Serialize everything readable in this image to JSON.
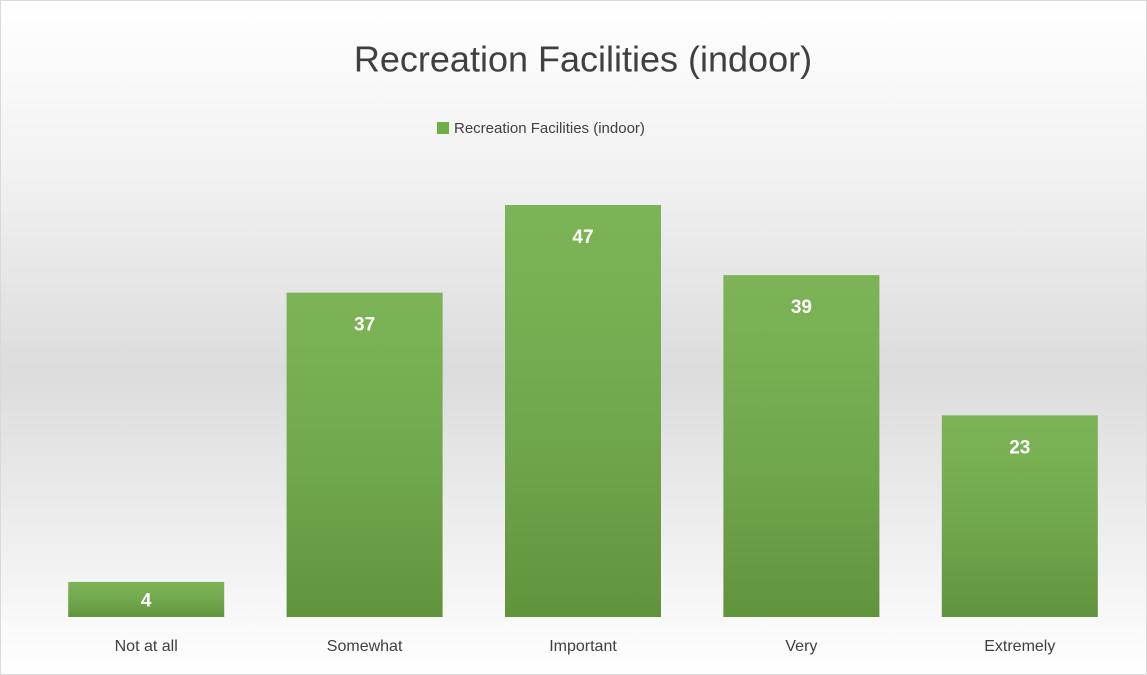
{
  "chart_data": {
    "type": "bar",
    "title": "Recreation Facilities (indoor)",
    "categories": [
      "Not at all",
      "Somewhat",
      "Important",
      "Very",
      "Extremely"
    ],
    "series": [
      {
        "name": "Recreation Facilities (indoor)",
        "color": "#70ad47",
        "values": [
          4,
          37,
          47,
          39,
          23
        ]
      }
    ]
  }
}
